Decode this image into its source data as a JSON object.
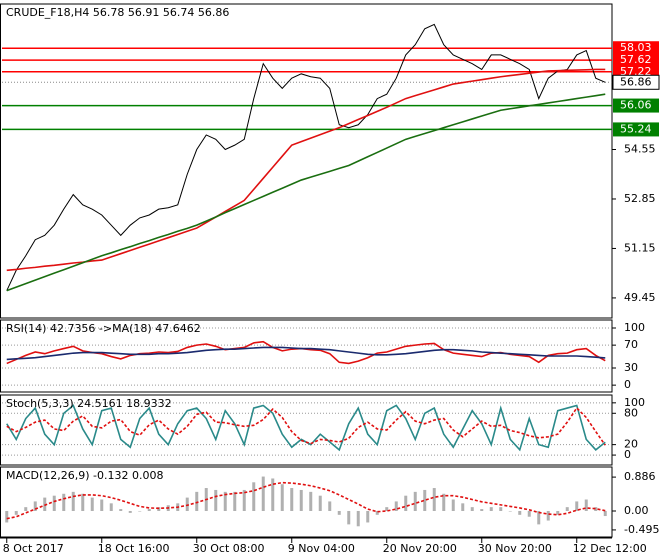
{
  "chart_data": [
    {
      "type": "line",
      "title": "CRUDE_F18,H4  56.78 56.91 56.74 56.86",
      "categories": [
        "8 Oct 2017",
        null,
        null,
        null,
        null,
        null,
        null,
        null,
        null,
        null,
        "18 Oct 16:00",
        null,
        null,
        null,
        null,
        null,
        null,
        null,
        null,
        null,
        "30 Oct 08:00",
        null,
        null,
        null,
        null,
        null,
        null,
        null,
        null,
        null,
        "9 Nov 04:00",
        null,
        null,
        null,
        null,
        null,
        null,
        null,
        null,
        null,
        "20 Nov 20:00",
        null,
        null,
        null,
        null,
        null,
        null,
        null,
        null,
        null,
        "30 Nov 20:00",
        null,
        null,
        null,
        null,
        null,
        null,
        null,
        null,
        null,
        "12 Dec 12:00",
        null,
        null,
        null
      ],
      "ylim": [
        48.76,
        59.55
      ],
      "yticks": [
        54.55,
        52.85,
        51.15,
        49.45
      ],
      "grid": false,
      "series": [
        {
          "name": "Price",
          "color": "#000000",
          "style": "line",
          "values": [
            49.7,
            50.4,
            50.9,
            51.45,
            51.6,
            51.95,
            52.5,
            53,
            52.65,
            52.5,
            52.3,
            51.95,
            51.6,
            51.95,
            52.2,
            52.3,
            52.5,
            52.55,
            52.65,
            53.7,
            54.55,
            55.05,
            54.9,
            54.55,
            54.7,
            54.9,
            56.3,
            57.5,
            57,
            56.65,
            57,
            57.15,
            57.05,
            57,
            56.65,
            55.4,
            55.3,
            55.4,
            55.75,
            56.3,
            56.45,
            57,
            57.8,
            58.15,
            58.7,
            58.85,
            58.15,
            57.8,
            57.65,
            57.5,
            57.3,
            57.8,
            57.8,
            57.65,
            57.5,
            57.3,
            56.3,
            57,
            57.25,
            57.3,
            57.8,
            57.95,
            57,
            56.86
          ]
        },
        {
          "name": "MA fast",
          "color": "#e01010",
          "style": "line",
          "values": [
            50.4,
            50.43,
            50.47,
            50.5,
            50.54,
            50.57,
            50.61,
            50.65,
            50.68,
            50.72,
            50.75,
            50.86,
            50.97,
            51.08,
            51.19,
            51.3,
            51.41,
            51.52,
            51.63,
            51.74,
            51.85,
            52.04,
            52.23,
            52.42,
            52.61,
            52.8,
            53.18,
            53.56,
            53.94,
            54.32,
            54.7,
            54.82,
            54.94,
            55.06,
            55.18,
            55.3,
            55.44,
            55.58,
            55.72,
            55.86,
            56,
            56.15,
            56.3,
            56.4,
            56.5,
            56.6,
            56.7,
            56.8,
            56.85,
            56.9,
            56.95,
            57,
            57.05,
            57.09,
            57.13,
            57.17,
            57.21,
            57.25,
            57.26,
            57.27,
            57.28,
            57.29,
            57.3,
            57.3
          ]
        },
        {
          "name": "MA slow",
          "color": "#1a6e10",
          "style": "line",
          "values": [
            49.7,
            49.82,
            49.94,
            50.06,
            50.18,
            50.3,
            50.42,
            50.54,
            50.66,
            50.78,
            50.9,
            51,
            51.11,
            51.21,
            51.32,
            51.42,
            51.53,
            51.63,
            51.74,
            51.84,
            51.95,
            52.09,
            52.23,
            52.38,
            52.52,
            52.66,
            52.8,
            52.94,
            53.08,
            53.22,
            53.36,
            53.5,
            53.6,
            53.7,
            53.8,
            53.9,
            54,
            54.15,
            54.3,
            54.45,
            54.6,
            54.75,
            54.9,
            55,
            55.1,
            55.2,
            55.3,
            55.4,
            55.5,
            55.6,
            55.7,
            55.8,
            55.9,
            55.95,
            56,
            56.05,
            56.1,
            56.15,
            56.2,
            56.25,
            56.3,
            56.35,
            56.4,
            56.45
          ]
        }
      ],
      "levels": [
        {
          "value": 58.03,
          "color": "#ff0000"
        },
        {
          "value": 57.62,
          "color": "#ff0000"
        },
        {
          "value": 57.22,
          "color": "#ff0000"
        },
        {
          "value": 56.06,
          "color": "#008000"
        },
        {
          "value": 55.24,
          "color": "#008000"
        }
      ],
      "last": 56.86
    },
    {
      "type": "line",
      "title": "RSI(14) 42.7356 ->MA(18) 47.6462",
      "ylim": [
        -12,
        114
      ],
      "yticks": [
        100,
        70,
        30,
        0
      ],
      "grid": true,
      "series": [
        {
          "name": "RSI",
          "color": "#e01010",
          "style": "line",
          "values": [
            38,
            45,
            52,
            58,
            55,
            60,
            64,
            68,
            60,
            57,
            55,
            50,
            46,
            52,
            55,
            56,
            58,
            57,
            59,
            66,
            70,
            72,
            68,
            62,
            64,
            66,
            74,
            76,
            66,
            60,
            63,
            64,
            62,
            61,
            55,
            40,
            38,
            42,
            48,
            56,
            58,
            63,
            68,
            70,
            72,
            73,
            62,
            56,
            54,
            52,
            50,
            56,
            57,
            54,
            52,
            50,
            40,
            52,
            55,
            56,
            62,
            64,
            52,
            42.7356
          ]
        },
        {
          "name": "MA",
          "color": "#1a2a6e",
          "style": "line",
          "values": [
            45,
            46,
            47,
            48,
            50,
            52,
            54,
            56,
            57,
            57,
            57,
            56,
            55,
            54,
            54,
            54,
            55,
            55,
            56,
            57,
            59,
            61,
            62,
            63,
            63,
            64,
            65,
            66,
            66,
            66,
            65,
            64,
            64,
            63,
            62,
            60,
            58,
            56,
            54,
            53,
            53,
            54,
            55,
            57,
            59,
            61,
            62,
            62,
            61,
            60,
            58,
            57,
            56,
            55,
            54,
            53,
            52,
            51,
            51,
            51,
            51,
            50,
            49,
            47.6462
          ]
        }
      ]
    },
    {
      "type": "line",
      "title": "Stoch(5,3,3) 24.5161 18.9332",
      "ylim": [
        -19,
        115
      ],
      "yticks": [
        100,
        80,
        20,
        0
      ],
      "grid": true,
      "series": [
        {
          "name": "Main",
          "color": "#2a8a8a",
          "style": "line",
          "values": [
            60,
            30,
            70,
            90,
            40,
            20,
            80,
            95,
            50,
            20,
            85,
            90,
            30,
            15,
            70,
            90,
            40,
            20,
            60,
            85,
            90,
            70,
            30,
            85,
            60,
            20,
            90,
            95,
            80,
            40,
            15,
            30,
            20,
            40,
            25,
            10,
            60,
            90,
            40,
            20,
            85,
            95,
            70,
            30,
            80,
            90,
            40,
            15,
            50,
            85,
            60,
            20,
            90,
            30,
            10,
            70,
            20,
            15,
            85,
            90,
            95,
            30,
            10,
            24.5161
          ]
        },
        {
          "name": "Signal",
          "color": "#e01010",
          "style": "dashed",
          "values": [
            55,
            45,
            53,
            63,
            67,
            50,
            47,
            65,
            75,
            55,
            52,
            65,
            68,
            45,
            38,
            58,
            67,
            50,
            40,
            55,
            78,
            82,
            63,
            62,
            58,
            55,
            57,
            68,
            88,
            72,
            45,
            28,
            22,
            30,
            28,
            25,
            32,
            53,
            63,
            50,
            48,
            67,
            83,
            65,
            60,
            67,
            70,
            48,
            35,
            50,
            65,
            55,
            57,
            47,
            43,
            37,
            33,
            35,
            40,
            63,
            90,
            72,
            45,
            18.9332
          ]
        }
      ]
    },
    {
      "type": "line",
      "title": "MACD(12,26,9) -0.132 0.008",
      "ylim": [
        -0.68,
        1.15
      ],
      "yticks": [
        0.886,
        {
          "value": 0,
          "label": "0.00"
        },
        -0.495
      ],
      "grid": false,
      "series": [
        {
          "name": "MACD",
          "color": "#b0b0b0",
          "style": "bar",
          "values": [
            -0.3,
            -0.1,
            0.1,
            0.25,
            0.35,
            0.4,
            0.45,
            0.5,
            0.45,
            0.35,
            0.3,
            0.2,
            0.05,
            -0.05,
            0,
            0.05,
            0.1,
            0.15,
            0.2,
            0.35,
            0.5,
            0.6,
            0.55,
            0.5,
            0.5,
            0.55,
            0.75,
            0.9,
            0.85,
            0.7,
            0.6,
            0.55,
            0.5,
            0.4,
            0.25,
            -0.1,
            -0.35,
            -0.4,
            -0.3,
            -0.1,
            0.1,
            0.25,
            0.4,
            0.5,
            0.55,
            0.6,
            0.45,
            0.3,
            0.2,
            0.1,
            0.05,
            0.1,
            0.1,
            0,
            -0.1,
            -0.15,
            -0.35,
            -0.25,
            -0.1,
            0.1,
            0.25,
            0.3,
            0.1,
            -0.132
          ]
        },
        {
          "name": "Signal",
          "color": "#e01010",
          "style": "dashed",
          "values": [
            -0.2,
            -0.15,
            -0.05,
            0.05,
            0.15,
            0.25,
            0.32,
            0.38,
            0.42,
            0.42,
            0.4,
            0.35,
            0.28,
            0.2,
            0.12,
            0.08,
            0.07,
            0.08,
            0.1,
            0.15,
            0.22,
            0.3,
            0.38,
            0.43,
            0.46,
            0.48,
            0.53,
            0.62,
            0.7,
            0.74,
            0.73,
            0.7,
            0.66,
            0.6,
            0.53,
            0.42,
            0.3,
            0.18,
            0.05,
            -0.02,
            0,
            0.05,
            0.12,
            0.2,
            0.28,
            0.36,
            0.4,
            0.4,
            0.36,
            0.3,
            0.24,
            0.2,
            0.16,
            0.12,
            0.08,
            0.03,
            -0.04,
            -0.08,
            -0.1,
            -0.06,
            0.02,
            0.08,
            0.06,
            0.008
          ]
        }
      ]
    }
  ]
}
